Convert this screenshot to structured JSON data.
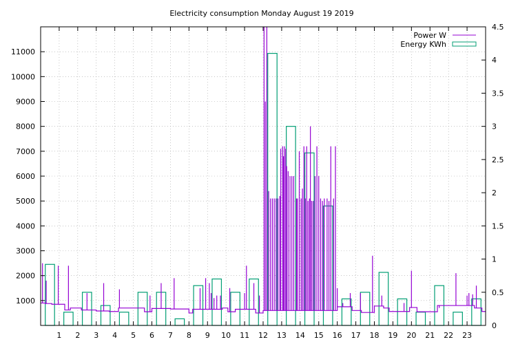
{
  "chart_data": {
    "type": "line",
    "title": "Electricity consumption Monday August 19 2019",
    "x_ticks": [
      "1",
      "2",
      "3",
      "4",
      "5",
      "6",
      "7",
      "8",
      "9",
      "10",
      "11",
      "12",
      "13",
      "14",
      "15",
      "16",
      "17",
      "18",
      "19",
      "20",
      "21",
      "22",
      "23"
    ],
    "xlim": [
      0,
      24
    ],
    "y_left": {
      "lim": [
        0,
        12000
      ],
      "ticks": [
        1000,
        2000,
        3000,
        4000,
        5000,
        6000,
        7000,
        8000,
        9000,
        10000,
        11000
      ]
    },
    "y_right": {
      "lim": [
        0,
        4.5
      ],
      "ticks": [
        "0",
        "0.5",
        "1",
        "1.5",
        "2",
        "2.5",
        "3",
        "3.5",
        "4",
        "4.5"
      ]
    },
    "grid": true,
    "legend_position": "top-right",
    "colors": {
      "power": "#9400d3",
      "energy": "#009e73"
    },
    "series": [
      {
        "name": "Power W",
        "axis": "left",
        "style": "steps",
        "baseline": [
          [
            0,
            900
          ],
          [
            0.25,
            880
          ],
          [
            0.6,
            850
          ],
          [
            1.3,
            620
          ],
          [
            1.6,
            700
          ],
          [
            2.2,
            620
          ],
          [
            3.0,
            580
          ],
          [
            3.7,
            560
          ],
          [
            4.2,
            700
          ],
          [
            5.6,
            550
          ],
          [
            6.0,
            680
          ],
          [
            7.0,
            660
          ],
          [
            8.0,
            500
          ],
          [
            8.2,
            650
          ],
          [
            9.0,
            650
          ],
          [
            9.8,
            700
          ],
          [
            10.1,
            550
          ],
          [
            10.5,
            650
          ],
          [
            11.5,
            650
          ],
          [
            11.6,
            500
          ],
          [
            12.0,
            600
          ],
          [
            16.0,
            750
          ],
          [
            16.8,
            600
          ],
          [
            17.3,
            520
          ],
          [
            17.8,
            520
          ],
          [
            18.0,
            780
          ],
          [
            18.5,
            700
          ],
          [
            18.8,
            560
          ],
          [
            19.4,
            560
          ],
          [
            19.9,
            720
          ],
          [
            20.3,
            550
          ],
          [
            21.4,
            800
          ],
          [
            23.4,
            700
          ],
          [
            23.8,
            560
          ]
        ],
        "spikes": [
          [
            0.1,
            2500
          ],
          [
            0.3,
            1800
          ],
          [
            0.95,
            2400
          ],
          [
            1.5,
            2400
          ],
          [
            2.5,
            1300
          ],
          [
            3.4,
            1700
          ],
          [
            4.25,
            1450
          ],
          [
            5.1,
            700
          ],
          [
            5.6,
            550
          ],
          [
            5.9,
            1200
          ],
          [
            6.5,
            1700
          ],
          [
            7.2,
            1900
          ],
          [
            8.6,
            1500
          ],
          [
            8.9,
            1900
          ],
          [
            9.1,
            1700
          ],
          [
            9.2,
            1300
          ],
          [
            9.35,
            1100
          ],
          [
            9.5,
            1200
          ],
          [
            9.7,
            1200
          ],
          [
            10.2,
            1500
          ],
          [
            11.0,
            1300
          ],
          [
            11.1,
            2400
          ],
          [
            11.5,
            1700
          ],
          [
            11.8,
            1200
          ],
          [
            12.05,
            12000
          ],
          [
            12.12,
            9000
          ],
          [
            12.2,
            12000
          ],
          [
            12.3,
            5400
          ],
          [
            12.4,
            5100
          ],
          [
            12.5,
            5100
          ],
          [
            12.6,
            5100
          ],
          [
            12.7,
            5100
          ],
          [
            12.8,
            5100
          ],
          [
            12.9,
            5200
          ],
          [
            12.95,
            7100
          ],
          [
            13.05,
            7200
          ],
          [
            13.1,
            6800
          ],
          [
            13.15,
            7200
          ],
          [
            13.22,
            7100
          ],
          [
            13.27,
            6400
          ],
          [
            13.35,
            6200
          ],
          [
            13.45,
            6000
          ],
          [
            13.55,
            6000
          ],
          [
            13.65,
            6000
          ],
          [
            13.8,
            5100
          ],
          [
            13.85,
            5100
          ],
          [
            13.95,
            7000
          ],
          [
            14.05,
            5100
          ],
          [
            14.12,
            5500
          ],
          [
            14.2,
            7200
          ],
          [
            14.28,
            5100
          ],
          [
            14.35,
            7200
          ],
          [
            14.42,
            5000
          ],
          [
            14.5,
            5100
          ],
          [
            14.55,
            8000
          ],
          [
            14.62,
            5000
          ],
          [
            14.7,
            5000
          ],
          [
            14.8,
            6000
          ],
          [
            14.9,
            7200
          ],
          [
            15.0,
            6000
          ],
          [
            15.1,
            5100
          ],
          [
            15.2,
            5000
          ],
          [
            15.3,
            5100
          ],
          [
            15.45,
            5100
          ],
          [
            15.55,
            5000
          ],
          [
            15.65,
            7200
          ],
          [
            15.8,
            5100
          ],
          [
            15.9,
            7200
          ],
          [
            16.0,
            1500
          ],
          [
            16.3,
            900
          ],
          [
            16.7,
            1300
          ],
          [
            17.25,
            1300
          ],
          [
            17.9,
            2800
          ],
          [
            18.4,
            1200
          ],
          [
            19.6,
            900
          ],
          [
            20.0,
            2200
          ],
          [
            21.5,
            700
          ],
          [
            22.4,
            2100
          ],
          [
            23.0,
            1200
          ],
          [
            23.1,
            1300
          ],
          [
            23.3,
            1250
          ],
          [
            23.5,
            1600
          ]
        ]
      },
      {
        "name": "Energy KWh",
        "axis": "right",
        "style": "boxes",
        "values": [
          0.92,
          0.2,
          0.5,
          0.3,
          0.2,
          0.5,
          0.5,
          0.1,
          0.6,
          0.7,
          0.5,
          0.7,
          4.1,
          3.0,
          2.6,
          1.8,
          0.4,
          0.5,
          0.8,
          0.4,
          0.2,
          0.6,
          0.2,
          0.4
        ]
      }
    ]
  }
}
